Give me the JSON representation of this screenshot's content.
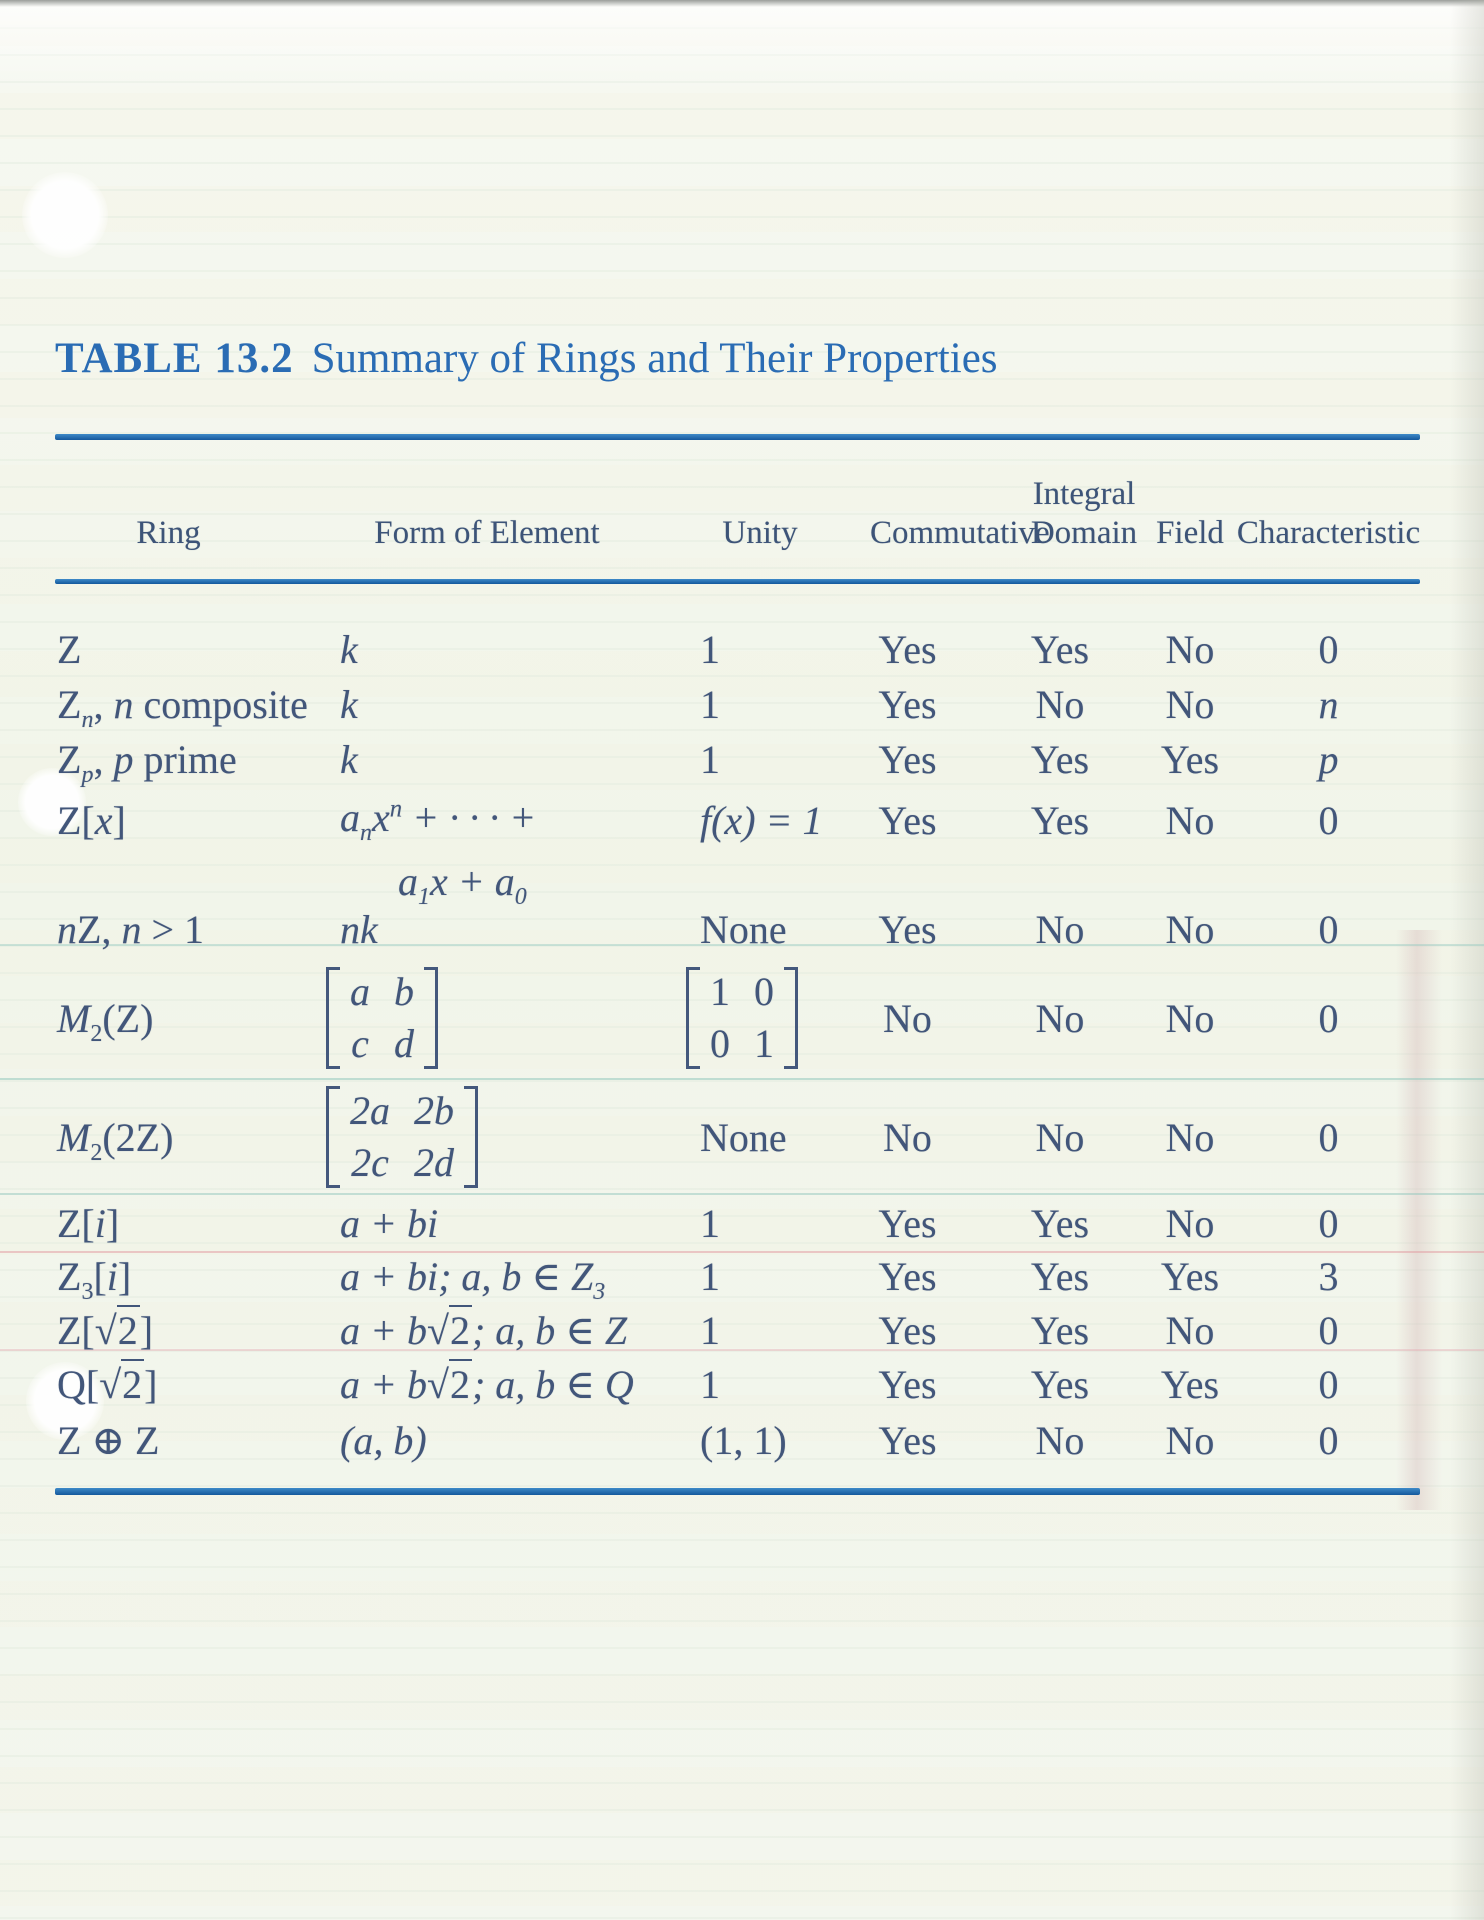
{
  "title": {
    "label": "TABLE 13.2",
    "text": "Summary of Rings and Their Properties"
  },
  "colors": {
    "title_blue": "#2a6cb4",
    "rule_blue": "#1a67ae",
    "text_blue_gray": "#42567a"
  },
  "table": {
    "columns": [
      {
        "key": "ring",
        "label": "Ring"
      },
      {
        "key": "form",
        "label": "Form of Element"
      },
      {
        "key": "unity",
        "label": "Unity"
      },
      {
        "key": "commutative",
        "label": "Commutative"
      },
      {
        "key": "integral_domain",
        "label": "Integral\nDomain"
      },
      {
        "key": "field",
        "label": "Field"
      },
      {
        "key": "characteristic",
        "label": "Characteristic"
      }
    ],
    "rows": [
      {
        "ring": "Z",
        "form": "k",
        "unity": "1",
        "commutative": "Yes",
        "integral_domain": "Yes",
        "field": "No",
        "characteristic": "0"
      },
      {
        "ring": "Z~*n*~, *n* composite",
        "form": "k",
        "unity": "1",
        "commutative": "Yes",
        "integral_domain": "No",
        "field": "No",
        "characteristic": "n"
      },
      {
        "ring": "Z~*p*~, *p* prime",
        "form": "k",
        "unity": "1",
        "commutative": "Yes",
        "integral_domain": "Yes",
        "field": "Yes",
        "characteristic": "p"
      },
      {
        "ring": "Z[*x*]",
        "form": {
          "lines": [
            "a~n~x^n^ + · · · +",
            "a~1~x + a~0~"
          ]
        },
        "unity": "f(x) = 1",
        "commutative": "Yes",
        "integral_domain": "Yes",
        "field": "No",
        "characteristic": "0"
      },
      {
        "ring": "*n*Z, *n* > 1",
        "form": "nk",
        "unity": "None",
        "commutative": "Yes",
        "integral_domain": "No",
        "field": "No",
        "characteristic": "0"
      },
      {
        "ring": "*M*~2~(Z)",
        "form": {
          "matrix": [
            [
              "a",
              "b"
            ],
            [
              "c",
              "d"
            ]
          ]
        },
        "unity": {
          "matrix": [
            [
              "1",
              "0"
            ],
            [
              "0",
              "1"
            ]
          ]
        },
        "commutative": "No",
        "integral_domain": "No",
        "field": "No",
        "characteristic": "0"
      },
      {
        "ring": "*M*~2~(2Z)",
        "form": {
          "matrix": [
            [
              "2a",
              "2b"
            ],
            [
              "2c",
              "2d"
            ]
          ]
        },
        "unity": "None",
        "commutative": "No",
        "integral_domain": "No",
        "field": "No",
        "characteristic": "0"
      },
      {
        "ring": "Z[*i*]",
        "form": "a + bi",
        "unity": "1",
        "commutative": "Yes",
        "integral_domain": "Yes",
        "field": "No",
        "characteristic": "0"
      },
      {
        "ring": "Z~3~[*i*]",
        "form": "a + bi; a, b ∈ Z~3~",
        "unity": "1",
        "commutative": "Yes",
        "integral_domain": "Yes",
        "field": "Yes",
        "characteristic": "3"
      },
      {
        "ring": "Z[√2]",
        "form": "a + b√2; a, b ∈ Z",
        "unity": "1",
        "commutative": "Yes",
        "integral_domain": "Yes",
        "field": "No",
        "characteristic": "0"
      },
      {
        "ring": "Q[√2]",
        "form": "a + b√2; a, b ∈ Q",
        "unity": "1",
        "commutative": "Yes",
        "integral_domain": "Yes",
        "field": "Yes",
        "characteristic": "0"
      },
      {
        "ring": "Z ⊕ Z",
        "form": "(a, b)",
        "unity": "(1, 1)",
        "commutative": "Yes",
        "integral_domain": "No",
        "field": "No",
        "characteristic": "0"
      }
    ]
  }
}
